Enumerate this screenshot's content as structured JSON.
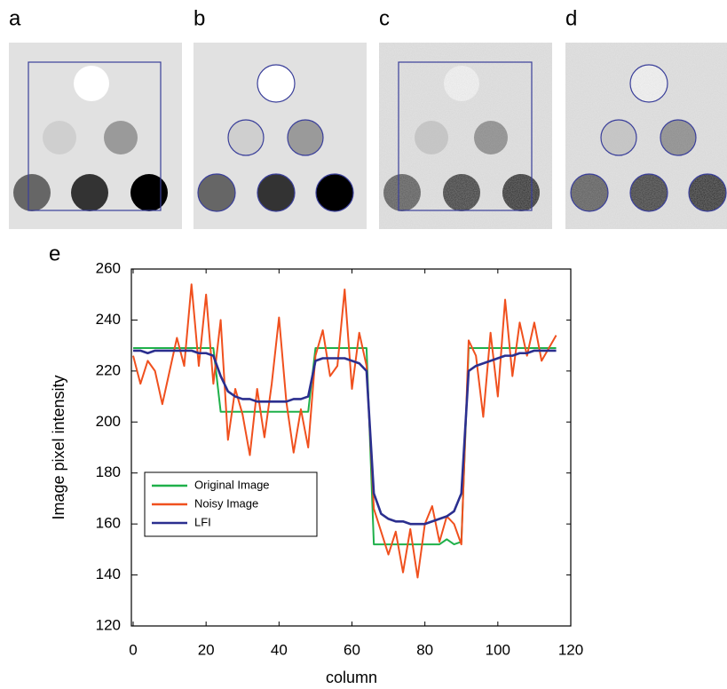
{
  "panels": {
    "labels": [
      "a",
      "b",
      "c",
      "d"
    ]
  },
  "chart_data": {
    "type": "line",
    "panel_label": "e",
    "x_label": "column",
    "y_label": "Image pixel intensity",
    "x": [
      0,
      2,
      4,
      6,
      8,
      10,
      12,
      14,
      16,
      18,
      20,
      22,
      24,
      26,
      28,
      30,
      32,
      34,
      36,
      38,
      40,
      42,
      44,
      46,
      48,
      50,
      52,
      54,
      56,
      58,
      60,
      62,
      64,
      66,
      68,
      70,
      72,
      74,
      76,
      78,
      80,
      82,
      84,
      86,
      88,
      90,
      92,
      94,
      96,
      98,
      100,
      102,
      104,
      106,
      108,
      110,
      112,
      114,
      116
    ],
    "series": [
      {
        "name": "Original Image",
        "color": "#1fb04a",
        "values": [
          229,
          229,
          229,
          229,
          229,
          229,
          229,
          229,
          229,
          229,
          229,
          229,
          204,
          204,
          204,
          204,
          204,
          204,
          204,
          204,
          204,
          204,
          204,
          204,
          204,
          229,
          229,
          229,
          229,
          229,
          229,
          229,
          229,
          152,
          152,
          152,
          152,
          152,
          152,
          152,
          152,
          152,
          152,
          154,
          152,
          153,
          229,
          229,
          229,
          229,
          229,
          229,
          229,
          229,
          229,
          229,
          229,
          229,
          229
        ]
      },
      {
        "name": "Noisy Image",
        "color": "#f0501e",
        "values": [
          226,
          215,
          224,
          220,
          207,
          220,
          233,
          222,
          254,
          222,
          250,
          215,
          240,
          193,
          213,
          203,
          187,
          213,
          194,
          215,
          241,
          208,
          188,
          205,
          190,
          226,
          236,
          218,
          222,
          252,
          213,
          235,
          222,
          166,
          157,
          148,
          157,
          141,
          158,
          139,
          160,
          167,
          153,
          163,
          160,
          152,
          232,
          226,
          202,
          235,
          210,
          248,
          218,
          239,
          226,
          239,
          224,
          229,
          234
        ]
      },
      {
        "name": "LFI",
        "color": "#2b2f8f",
        "values": [
          228,
          228,
          227,
          228,
          228,
          228,
          228,
          228,
          228,
          227,
          227,
          226,
          218,
          212,
          210,
          209,
          209,
          208,
          208,
          208,
          208,
          208,
          209,
          209,
          210,
          224,
          225,
          225,
          225,
          225,
          224,
          223,
          220,
          172,
          164,
          162,
          161,
          161,
          160,
          160,
          160,
          161,
          162,
          163,
          165,
          172,
          220,
          222,
          223,
          224,
          225,
          226,
          226,
          227,
          227,
          228,
          228,
          228,
          228
        ]
      }
    ],
    "xlim": [
      0,
      120
    ],
    "xticks": [
      0,
      20,
      40,
      60,
      80,
      100,
      120
    ],
    "ylim": [
      120,
      260
    ],
    "yticks": [
      120,
      140,
      160,
      180,
      200,
      220,
      240,
      260
    ],
    "grid": false,
    "legend": "center left"
  }
}
